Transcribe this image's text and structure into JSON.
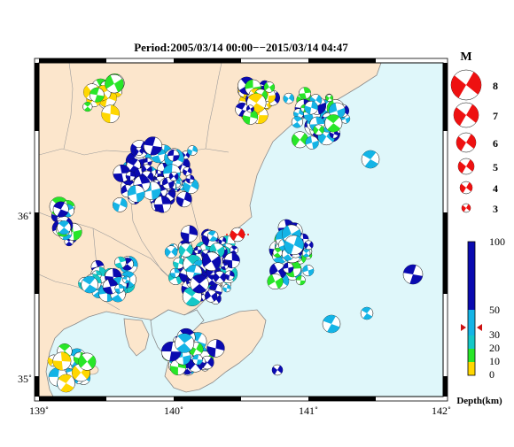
{
  "title": "Period:2005/03/14 00:00−−2015/03/14 04:47",
  "axes": {
    "x_ticks": [
      "139˚",
      "140˚",
      "141˚",
      "142˚"
    ],
    "y_ticks": [
      "36˚",
      "35˚"
    ]
  },
  "magnitude_legend": {
    "title": "M",
    "labels": [
      "8",
      "7",
      "6",
      "5",
      "4",
      "3"
    ],
    "color": "#ee1111"
  },
  "depth_legend": {
    "title": "Depth(km)",
    "labels": [
      "100",
      "50",
      "30",
      "20",
      "10",
      "0"
    ],
    "colors": {
      "deep": "#0a0ab0",
      "mid": "#14b4e6",
      "shallow_mid": "#14c8c8",
      "shallow": "#28e628",
      "surface": "#ffd700"
    }
  },
  "map_colors": {
    "land": "#fce6cc",
    "sea": "#dff7fa",
    "event_marker": "#ee1111"
  }
}
